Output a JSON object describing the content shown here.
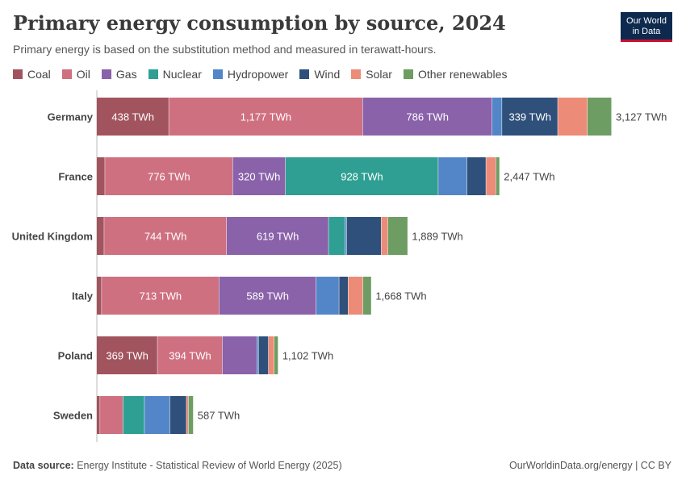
{
  "header": {
    "title": "Primary energy consumption by source, 2024",
    "subtitle": "Primary energy is based on the substitution method and measured in terawatt-hours.",
    "logo_line1": "Our World",
    "logo_line2": "in Data"
  },
  "footer": {
    "source_label": "Data source:",
    "source_text": "Energy Institute - Statistical Review of World Energy (2025)",
    "credit": "OurWorldinData.org/energy | CC BY"
  },
  "chart_data": {
    "type": "bar",
    "orientation": "horizontal",
    "stacked": true,
    "title": "Primary energy consumption by source, 2024",
    "unit": "TWh",
    "categories": [
      "Germany",
      "France",
      "United Kingdom",
      "Italy",
      "Poland",
      "Sweden"
    ],
    "totals": [
      3127,
      2447,
      1889,
      1668,
      1102,
      587
    ],
    "total_labels": [
      "3,127 TWh",
      "2,447 TWh",
      "1,889 TWh",
      "1,668 TWh",
      "1,102 TWh",
      "587 TWh"
    ],
    "legend_position": "top-left",
    "series": [
      {
        "name": "Coal",
        "color": "#a2545e",
        "values": [
          438,
          50,
          45,
          30,
          369,
          20
        ],
        "labels": [
          "438 TWh",
          "",
          "",
          "",
          "369 TWh",
          ""
        ]
      },
      {
        "name": "Oil",
        "color": "#cf7080",
        "values": [
          1177,
          776,
          744,
          713,
          394,
          140
        ],
        "labels": [
          "1,177 TWh",
          "776 TWh",
          "744 TWh",
          "713 TWh",
          "394 TWh",
          ""
        ]
      },
      {
        "name": "Gas",
        "color": "#8a62aa",
        "values": [
          786,
          320,
          619,
          589,
          210,
          0
        ],
        "labels": [
          "786 TWh",
          "320 TWh",
          "619 TWh",
          "589 TWh",
          "",
          ""
        ]
      },
      {
        "name": "Nuclear",
        "color": "#2e9f92",
        "values": [
          0,
          928,
          100,
          0,
          0,
          130
        ],
        "labels": [
          "",
          "928 TWh",
          "",
          "",
          "",
          ""
        ]
      },
      {
        "name": "Hydropower",
        "color": "#5386c8",
        "values": [
          60,
          175,
          10,
          140,
          10,
          155
        ],
        "labels": [
          "",
          "",
          "",
          "",
          "",
          ""
        ]
      },
      {
        "name": "Wind",
        "color": "#2f507a",
        "values": [
          339,
          115,
          210,
          55,
          60,
          100
        ],
        "labels": [
          "339 TWh",
          "",
          "",
          "",
          "",
          ""
        ]
      },
      {
        "name": "Solar",
        "color": "#ec8b78",
        "values": [
          180,
          60,
          40,
          90,
          35,
          12
        ],
        "labels": [
          "",
          "",
          "",
          "",
          "",
          ""
        ]
      },
      {
        "name": "Other renewables",
        "color": "#6d9d62",
        "values": [
          147,
          23,
          121,
          51,
          24,
          30
        ],
        "labels": [
          "",
          "",
          "",
          "",
          "",
          ""
        ]
      }
    ]
  }
}
